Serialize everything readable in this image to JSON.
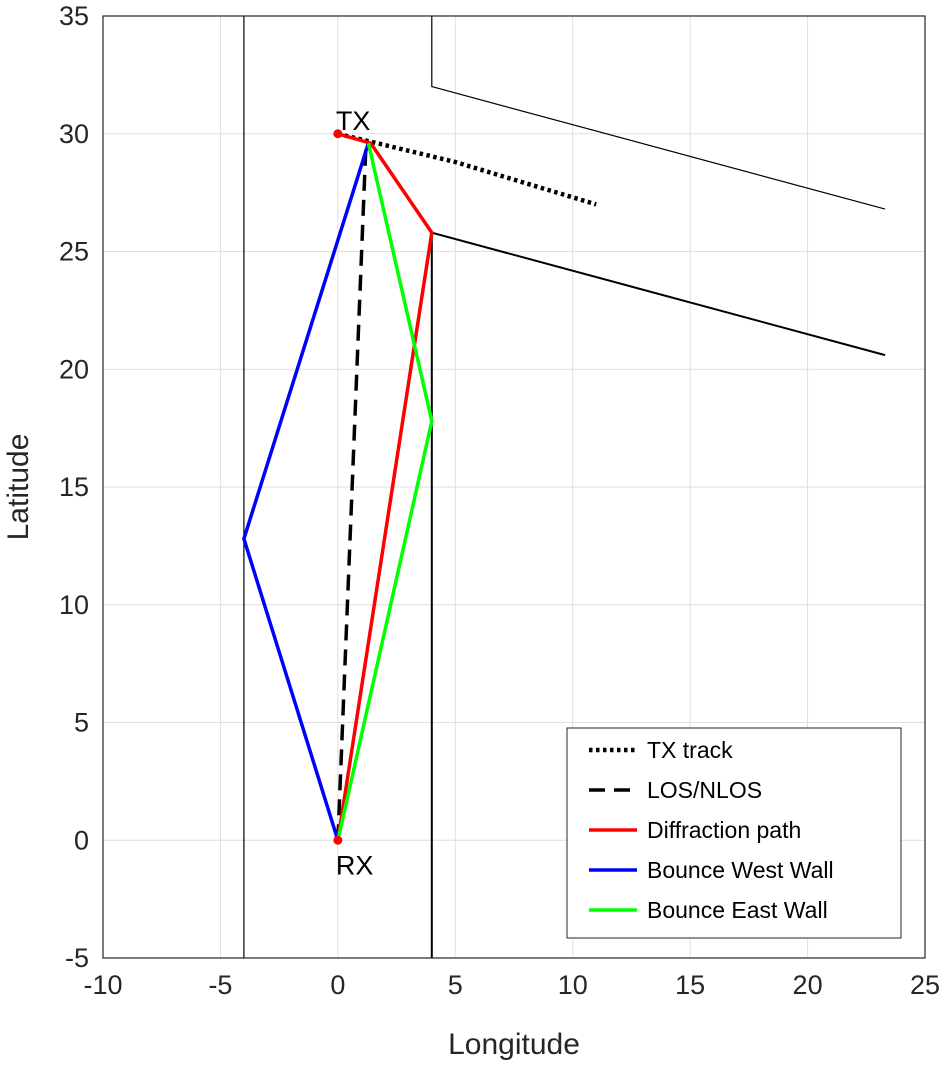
{
  "chart_data": {
    "type": "line",
    "title": "",
    "xlabel": "Longitude",
    "ylabel": "Latitude",
    "xlim": [
      -10,
      25
    ],
    "ylim": [
      -5,
      35
    ],
    "xticks": [
      -10,
      -5,
      0,
      5,
      10,
      15,
      20,
      25
    ],
    "yticks": [
      -5,
      0,
      5,
      10,
      15,
      20,
      25,
      30,
      35
    ],
    "grid": true,
    "legend_position": "bottom-right",
    "walls": [
      {
        "points": [
          [
            -4,
            -5
          ],
          [
            -4,
            35
          ]
        ],
        "width": 1.2
      },
      {
        "points": [
          [
            4,
            -5
          ],
          [
            4,
            25.8
          ],
          [
            23.3,
            20.6
          ]
        ],
        "width": 2
      },
      {
        "points": [
          [
            4,
            35
          ],
          [
            4,
            32
          ],
          [
            23.3,
            26.8
          ]
        ],
        "width": 1.2
      }
    ],
    "points": [
      {
        "label": "TX",
        "x": 0,
        "y": 30,
        "color": "#ff0000"
      },
      {
        "label": "RX",
        "x": 0,
        "y": 0,
        "color": "#ff0000"
      }
    ],
    "series": [
      {
        "name": "TX track",
        "color": "#000000",
        "style": "dotted",
        "x": [
          0,
          5,
          11
        ],
        "y": [
          30,
          28.8,
          27
        ]
      },
      {
        "name": "LOS/NLOS",
        "color": "#000000",
        "style": "dashed",
        "x": [
          0,
          1.2
        ],
        "y": [
          0,
          29.6
        ]
      },
      {
        "name": "Diffraction path",
        "color": "#ff0000",
        "style": "solid",
        "x": [
          0,
          4,
          1.4,
          0
        ],
        "y": [
          0,
          25.8,
          29.6,
          30
        ]
      },
      {
        "name": "Bounce West Wall",
        "color": "#0000ff",
        "style": "solid",
        "x": [
          0,
          -4,
          1.3
        ],
        "y": [
          0,
          12.8,
          29.6
        ]
      },
      {
        "name": "Bounce East Wall",
        "color": "#00ff00",
        "style": "solid",
        "x": [
          0,
          4,
          1.3
        ],
        "y": [
          0,
          17.8,
          29.6
        ]
      }
    ]
  }
}
